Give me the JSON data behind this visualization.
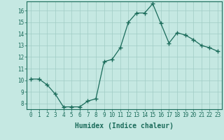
{
  "x": [
    0,
    1,
    2,
    3,
    4,
    5,
    6,
    7,
    8,
    9,
    10,
    11,
    12,
    13,
    14,
    15,
    16,
    17,
    18,
    19,
    20,
    21,
    22,
    23
  ],
  "y": [
    10.1,
    10.1,
    9.6,
    8.8,
    7.7,
    7.7,
    7.7,
    8.2,
    8.4,
    11.6,
    11.8,
    12.8,
    15.0,
    15.8,
    15.8,
    16.6,
    14.9,
    13.2,
    14.1,
    13.9,
    13.5,
    13.0,
    12.8,
    12.5
  ],
  "line_color": "#1a6b5a",
  "marker": "+",
  "marker_size": 4,
  "bg_color": "#c5e8e2",
  "grid_color": "#a0ccc5",
  "xlabel": "Humidex (Indice chaleur)",
  "ylim": [
    7.5,
    16.8
  ],
  "xlim": [
    -0.5,
    23.5
  ],
  "yticks": [
    8,
    9,
    10,
    11,
    12,
    13,
    14,
    15,
    16
  ],
  "xticks": [
    0,
    1,
    2,
    3,
    4,
    5,
    6,
    7,
    8,
    9,
    10,
    11,
    12,
    13,
    14,
    15,
    16,
    17,
    18,
    19,
    20,
    21,
    22,
    23
  ],
  "xtick_labels": [
    "0",
    "1",
    "2",
    "3",
    "4",
    "5",
    "6",
    "7",
    "8",
    "9",
    "10",
    "11",
    "12",
    "13",
    "14",
    "15",
    "16",
    "17",
    "18",
    "19",
    "20",
    "21",
    "22",
    "23"
  ],
  "label_fontsize": 6.5,
  "tick_fontsize": 5.5,
  "xlabel_fontsize": 7
}
